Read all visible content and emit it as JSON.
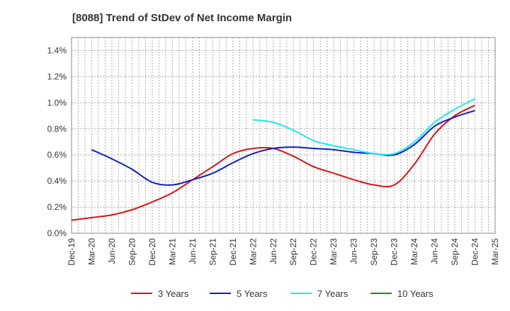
{
  "chart_data": {
    "type": "line",
    "title": "[8088]  Trend of StDev of Net Income Margin",
    "xlabel": "",
    "ylabel": "",
    "categories": [
      "Dec-19",
      "Mar-20",
      "Jun-20",
      "Sep-20",
      "Dec-20",
      "Mar-21",
      "Jun-21",
      "Sep-21",
      "Dec-21",
      "Mar-22",
      "Jun-22",
      "Sep-22",
      "Dec-22",
      "Mar-23",
      "Jun-23",
      "Sep-23",
      "Dec-23",
      "Mar-24",
      "Jun-24",
      "Sep-24",
      "Dec-24",
      "Mar-25"
    ],
    "y_ticks": [
      "0.0%",
      "0.2%",
      "0.4%",
      "0.6%",
      "0.8%",
      "1.0%",
      "1.2%",
      "1.4%"
    ],
    "ylim": [
      0,
      1.5
    ],
    "grid": true,
    "legend_position": "bottom",
    "series": [
      {
        "name": "3 Years",
        "color": "#dd1111",
        "values": [
          0.1,
          0.12,
          0.14,
          0.18,
          0.24,
          0.31,
          0.41,
          0.51,
          0.61,
          0.65,
          0.65,
          0.59,
          0.51,
          0.46,
          0.41,
          0.37,
          0.37,
          0.53,
          0.76,
          0.9,
          0.98,
          null
        ]
      },
      {
        "name": "5 Years",
        "color": "#0b1fc2",
        "values": [
          null,
          0.64,
          0.57,
          0.49,
          0.39,
          0.37,
          0.41,
          0.46,
          0.54,
          0.61,
          0.65,
          0.66,
          0.65,
          0.64,
          0.62,
          0.61,
          0.6,
          0.68,
          0.82,
          0.89,
          0.94,
          null
        ]
      },
      {
        "name": "7 Years",
        "color": "#1de9f0",
        "values": [
          null,
          null,
          null,
          null,
          null,
          null,
          null,
          null,
          null,
          0.87,
          0.85,
          0.79,
          0.71,
          0.67,
          0.64,
          0.61,
          0.61,
          0.7,
          0.85,
          0.95,
          1.03,
          null
        ]
      },
      {
        "name": "10 Years",
        "color": "#1a8a1a",
        "values": [
          null,
          null,
          null,
          null,
          null,
          null,
          null,
          null,
          null,
          null,
          null,
          null,
          null,
          null,
          null,
          null,
          null,
          null,
          null,
          null,
          null,
          null
        ]
      }
    ]
  }
}
